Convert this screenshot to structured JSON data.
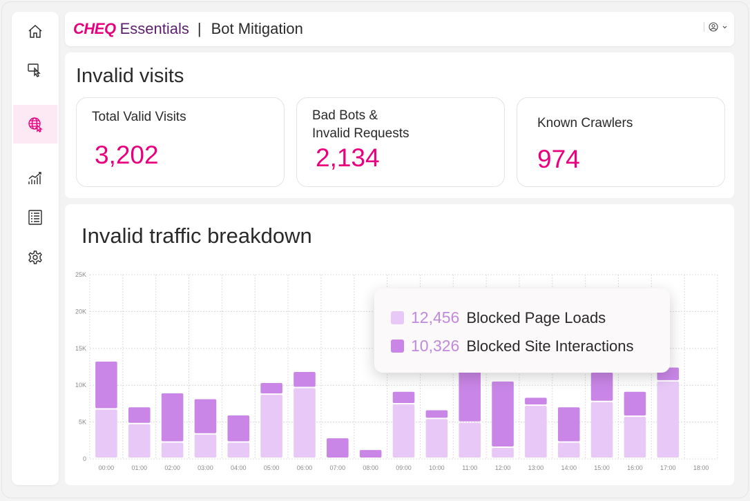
{
  "header": {
    "logo": "CHEQ",
    "product": "Essentials",
    "separator": "|",
    "page": "Bot Mitigation"
  },
  "sidebar": {
    "items": [
      {
        "name": "home-icon"
      },
      {
        "name": "click-icon"
      },
      {
        "name": "globe-cursor-icon",
        "active": true
      },
      {
        "name": "analytics-icon"
      },
      {
        "name": "list-icon"
      },
      {
        "name": "gear-icon"
      }
    ]
  },
  "visits": {
    "title": "Invalid visits",
    "cards": [
      {
        "label": "Total Valid Visits",
        "value": "3,202"
      },
      {
        "label_line1": "Bad Bots &",
        "label_line2": "Invalid Requests",
        "value": "2,134"
      },
      {
        "label": "Known Crawlers",
        "value": "974"
      }
    ]
  },
  "traffic": {
    "title": "Invalid traffic breakdown"
  },
  "colors": {
    "accent": "#e8007e",
    "page_loads": "#e7c8f7",
    "site_interactions": "#c986e6"
  },
  "chart_data": {
    "type": "bar",
    "stacked": true,
    "categories": [
      "00:00",
      "01:00",
      "02:00",
      "03:00",
      "04:00",
      "05:00",
      "06:00",
      "07:00",
      "08:00",
      "09:00",
      "10:00",
      "11:00",
      "12:00",
      "13:00",
      "14:00",
      "15:00",
      "16:00",
      "17:00",
      "18:00"
    ],
    "series": [
      {
        "name": "Blocked Page Loads",
        "values": [
          6700,
          4700,
          2200,
          3300,
          2200,
          8700,
          9600,
          0,
          0,
          7400,
          5400,
          4900,
          1500,
          7200,
          2200,
          7700,
          5700,
          10500,
          200
        ]
      },
      {
        "name": "Blocked Site Interactions",
        "values": [
          6500,
          2300,
          6700,
          4800,
          3700,
          1600,
          2200,
          2800,
          1200,
          1700,
          1200,
          12000,
          9000,
          1100,
          4800,
          4000,
          3400,
          1900,
          100
        ]
      }
    ],
    "yticks": [
      "0",
      "5K",
      "10K",
      "15K",
      "20K",
      "25K"
    ],
    "ylim": [
      0,
      25000
    ],
    "grid": true
  },
  "tooltip": {
    "rows": [
      {
        "value": "12,456",
        "label": "Blocked Page Loads"
      },
      {
        "value": "10,326",
        "label": "Blocked Site Interactions"
      }
    ]
  }
}
